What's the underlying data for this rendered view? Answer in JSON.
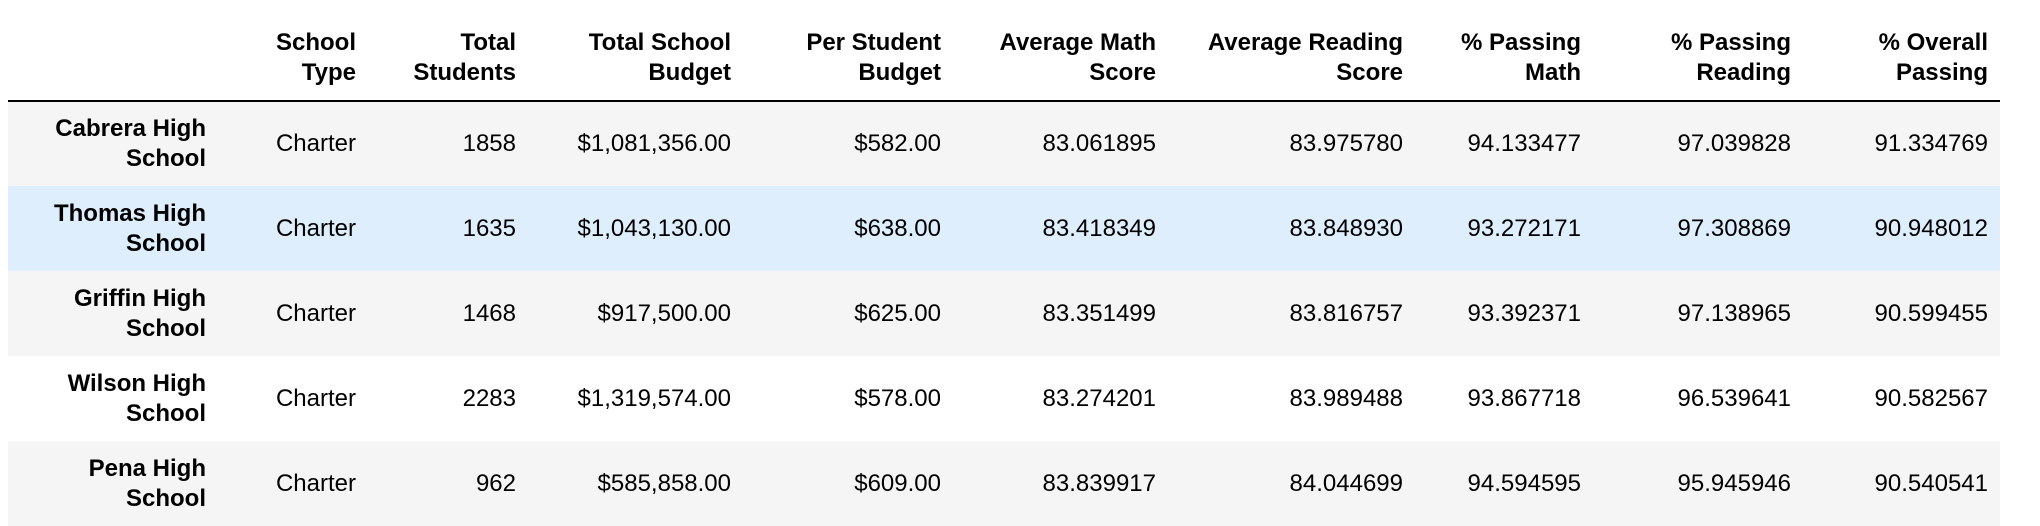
{
  "table": {
    "columns": [
      {
        "line1": "School",
        "line2": "Type"
      },
      {
        "line1": "Total",
        "line2": "Students"
      },
      {
        "line1": "Total School",
        "line2": "Budget"
      },
      {
        "line1": "Per Student",
        "line2": "Budget"
      },
      {
        "line1": "Average Math",
        "line2": "Score"
      },
      {
        "line1": "Average Reading",
        "line2": "Score"
      },
      {
        "line1": "% Passing",
        "line2": "Math"
      },
      {
        "line1": "% Passing",
        "line2": "Reading"
      },
      {
        "line1": "% Overall",
        "line2": "Passing"
      }
    ],
    "rows": [
      {
        "name_line1": "Cabrera High",
        "name_line2": "School",
        "cells": [
          "Charter",
          "1858",
          "$1,081,356.00",
          "$582.00",
          "83.061895",
          "83.975780",
          "94.133477",
          "97.039828",
          "91.334769"
        ]
      },
      {
        "name_line1": "Thomas High",
        "name_line2": "School",
        "cells": [
          "Charter",
          "1635",
          "$1,043,130.00",
          "$638.00",
          "83.418349",
          "83.848930",
          "93.272171",
          "97.308869",
          "90.948012"
        ]
      },
      {
        "name_line1": "Griffin High",
        "name_line2": "School",
        "cells": [
          "Charter",
          "1468",
          "$917,500.00",
          "$625.00",
          "83.351499",
          "83.816757",
          "93.392371",
          "97.138965",
          "90.599455"
        ]
      },
      {
        "name_line1": "Wilson High",
        "name_line2": "School",
        "cells": [
          "Charter",
          "2283",
          "$1,319,574.00",
          "$578.00",
          "83.274201",
          "83.989488",
          "93.867718",
          "96.539641",
          "90.582567"
        ]
      },
      {
        "name_line1": "Pena High",
        "name_line2": "School",
        "cells": [
          "Charter",
          "962",
          "$585,858.00",
          "$609.00",
          "83.839917",
          "84.044699",
          "94.594595",
          "95.945946",
          "90.540541"
        ]
      }
    ]
  },
  "colors": {
    "odd_row": "#f5f5f5",
    "even_row": "#ffffff",
    "hover_row": "#dfeefc",
    "header_rule": "#000000"
  }
}
